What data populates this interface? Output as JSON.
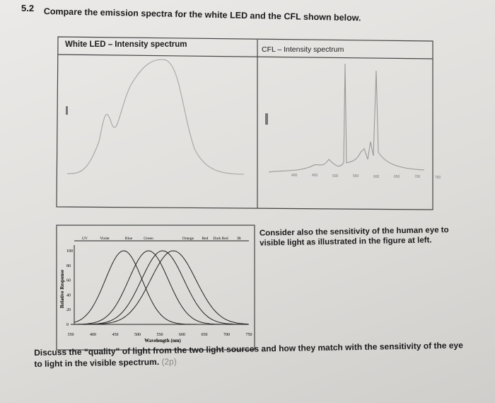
{
  "header": {
    "number": "5.2",
    "text": "Compare the emission spectra for the white LED and the CFL shown below."
  },
  "figures": {
    "led_title": "White LED – Intensity spectrum",
    "cfl_title": "CFL – Intensity spectrum",
    "cfl_xticks": [
      "400",
      "450",
      "500",
      "550",
      "600",
      "650",
      "700",
      "750"
    ]
  },
  "sensitivity_chart": {
    "bands": [
      "UV",
      "Violet",
      "Blue",
      "Green",
      "Orange",
      "Red",
      "Dark Red",
      "IR"
    ],
    "yticks": [
      "100",
      "80",
      "60",
      "40",
      "20",
      "0"
    ],
    "xticks": [
      "350",
      "400",
      "450",
      "500",
      "550",
      "600",
      "650",
      "700",
      "750"
    ],
    "xlabel": "Wavelength (nm)",
    "ylabel": "Relative Response"
  },
  "side_text": "Consider also the sensitivity of the human eye to visible light as illustrated in the figure at left.",
  "question": {
    "text": "Discuss the “quality” of light from the two light sources and how they match with the sensitivity of the eye to light in the visible spectrum.",
    "points": "(2p)"
  }
}
